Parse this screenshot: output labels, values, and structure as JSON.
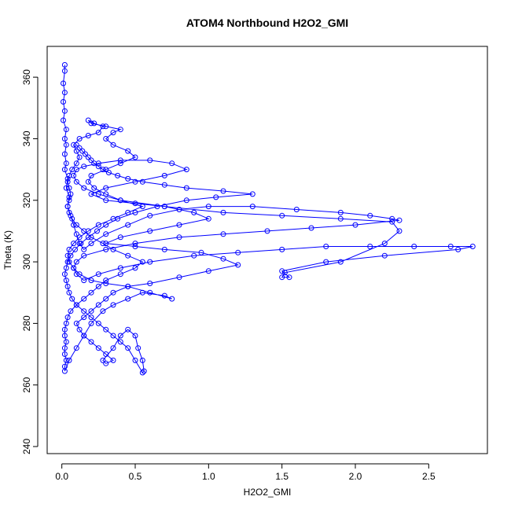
{
  "chart_data": {
    "type": "line",
    "title": "ATOM4 Northbound H2O2_GMI",
    "xlabel": "H2O2_GMI",
    "ylabel": "Theta (K)",
    "xlim": [
      -0.1,
      2.9
    ],
    "ylim": [
      237.7,
      370
    ],
    "x_ticks": [
      0.0,
      0.5,
      1.0,
      1.5,
      2.0,
      2.5
    ],
    "x_tick_labels": [
      "0.0",
      "0.5",
      "1.0",
      "1.5",
      "2.0",
      "2.5"
    ],
    "y_ticks": [
      240,
      260,
      280,
      300,
      320,
      340,
      360
    ],
    "y_tick_labels": [
      "240",
      "260",
      "280",
      "300",
      "320",
      "340",
      "360"
    ],
    "grid": false,
    "marker": "open-circle",
    "color": "#0000ff",
    "series": [
      {
        "values": [
          [
            0.02,
            364
          ],
          [
            0.02,
            362
          ],
          [
            0.01,
            358
          ],
          [
            0.02,
            355
          ],
          [
            0.01,
            352
          ],
          [
            0.02,
            349
          ],
          [
            0.01,
            346
          ],
          [
            0.03,
            343
          ],
          [
            0.02,
            340
          ],
          [
            0.03,
            338
          ],
          [
            0.02,
            335
          ],
          [
            0.03,
            332
          ],
          [
            0.02,
            330
          ],
          [
            0.04,
            327
          ],
          [
            0.03,
            324
          ],
          [
            0.05,
            321
          ],
          [
            0.04,
            318
          ],
          [
            0.06,
            315
          ],
          [
            0.08,
            312
          ],
          [
            0.1,
            309
          ],
          [
            0.12,
            306
          ],
          [
            0.15,
            304
          ],
          [
            0.2,
            306
          ],
          [
            0.3,
            309
          ],
          [
            0.45,
            312
          ],
          [
            0.6,
            315
          ],
          [
            0.8,
            317
          ],
          [
            1.0,
            318
          ],
          [
            1.3,
            318
          ],
          [
            1.6,
            317
          ],
          [
            1.9,
            316
          ],
          [
            2.1,
            315
          ],
          [
            2.25,
            314
          ],
          [
            2.3,
            313.5
          ],
          [
            2.0,
            312
          ],
          [
            1.7,
            311
          ],
          [
            1.4,
            310
          ],
          [
            1.1,
            309
          ],
          [
            0.8,
            308
          ],
          [
            0.5,
            306
          ],
          [
            0.3,
            304
          ],
          [
            0.15,
            302
          ],
          [
            0.1,
            300
          ],
          [
            0.08,
            298
          ],
          [
            0.1,
            296
          ],
          [
            0.15,
            294
          ],
          [
            0.25,
            296
          ],
          [
            0.4,
            298
          ],
          [
            0.6,
            300
          ],
          [
            0.9,
            302
          ],
          [
            1.2,
            303
          ],
          [
            1.5,
            304
          ],
          [
            1.8,
            305
          ],
          [
            2.1,
            305
          ],
          [
            2.4,
            305
          ],
          [
            2.65,
            305
          ],
          [
            2.8,
            305
          ],
          [
            2.7,
            304
          ],
          [
            2.2,
            302
          ],
          [
            1.8,
            300
          ],
          [
            1.5,
            297
          ],
          [
            1.55,
            295
          ],
          [
            1.5,
            295
          ],
          [
            1.52,
            296.5
          ],
          [
            1.9,
            300
          ],
          [
            2.2,
            306
          ],
          [
            2.3,
            310
          ],
          [
            2.25,
            313
          ],
          [
            1.9,
            314
          ],
          [
            1.5,
            315
          ],
          [
            1.1,
            316
          ],
          [
            0.7,
            318
          ],
          [
            0.4,
            320
          ],
          [
            0.25,
            322
          ],
          [
            0.15,
            324
          ],
          [
            0.1,
            326
          ],
          [
            0.08,
            328
          ],
          [
            0.1,
            330
          ],
          [
            0.15,
            331
          ],
          [
            0.25,
            332
          ],
          [
            0.4,
            333
          ],
          [
            0.6,
            333
          ],
          [
            0.75,
            332
          ],
          [
            0.85,
            330
          ],
          [
            0.7,
            328
          ],
          [
            0.5,
            326
          ],
          [
            0.3,
            324
          ],
          [
            0.2,
            322
          ],
          [
            0.3,
            320
          ],
          [
            0.5,
            319
          ],
          [
            0.7,
            318
          ],
          [
            0.9,
            316
          ],
          [
            1.0,
            314
          ],
          [
            0.8,
            312
          ],
          [
            0.6,
            310
          ],
          [
            0.4,
            308
          ],
          [
            0.3,
            306
          ],
          [
            0.5,
            305
          ],
          [
            0.7,
            304
          ],
          [
            0.95,
            303
          ],
          [
            1.1,
            301
          ],
          [
            1.2,
            299
          ],
          [
            1.0,
            297
          ],
          [
            0.8,
            295
          ],
          [
            0.6,
            293
          ],
          [
            0.45,
            292
          ],
          [
            0.3,
            293
          ],
          [
            0.2,
            294
          ],
          [
            0.12,
            296
          ],
          [
            0.08,
            298
          ],
          [
            0.05,
            300
          ],
          [
            0.04,
            302
          ],
          [
            0.05,
            304
          ],
          [
            0.08,
            306
          ],
          [
            0.12,
            308
          ],
          [
            0.18,
            310
          ],
          [
            0.25,
            312
          ],
          [
            0.35,
            314
          ],
          [
            0.45,
            316
          ],
          [
            0.55,
            318
          ],
          [
            0.4,
            320
          ],
          [
            0.3,
            322
          ],
          [
            0.22,
            324
          ],
          [
            0.18,
            326
          ],
          [
            0.2,
            328
          ],
          [
            0.3,
            330
          ],
          [
            0.4,
            332
          ],
          [
            0.5,
            334
          ],
          [
            0.45,
            336
          ],
          [
            0.35,
            338
          ],
          [
            0.3,
            340
          ],
          [
            0.35,
            342
          ],
          [
            0.4,
            343
          ],
          [
            0.3,
            344
          ],
          [
            0.2,
            345
          ],
          [
            0.18,
            346
          ],
          [
            0.22,
            345
          ],
          [
            0.28,
            344
          ],
          [
            0.25,
            342
          ],
          [
            0.18,
            341
          ],
          [
            0.12,
            340
          ],
          [
            0.08,
            338
          ],
          [
            0.1,
            336
          ],
          [
            0.12,
            334
          ],
          [
            0.1,
            332
          ],
          [
            0.07,
            330
          ],
          [
            0.05,
            328
          ],
          [
            0.04,
            326
          ],
          [
            0.05,
            324
          ],
          [
            0.06,
            322
          ],
          [
            0.05,
            320
          ],
          [
            0.04,
            318
          ],
          [
            0.05,
            316
          ],
          [
            0.07,
            314
          ],
          [
            0.1,
            312
          ],
          [
            0.15,
            310
          ],
          [
            0.2,
            308
          ],
          [
            0.28,
            306
          ],
          [
            0.35,
            304
          ],
          [
            0.45,
            302
          ],
          [
            0.55,
            300
          ],
          [
            0.5,
            298
          ],
          [
            0.4,
            296
          ],
          [
            0.3,
            294
          ],
          [
            0.25,
            292
          ],
          [
            0.2,
            290
          ],
          [
            0.15,
            288
          ],
          [
            0.1,
            286
          ],
          [
            0.06,
            284
          ],
          [
            0.04,
            282
          ],
          [
            0.03,
            280
          ],
          [
            0.02,
            278
          ],
          [
            0.02,
            276
          ],
          [
            0.03,
            274
          ],
          [
            0.02,
            272
          ],
          [
            0.02,
            270
          ],
          [
            0.03,
            268
          ],
          [
            0.02,
            266
          ],
          [
            0.02,
            264.5
          ],
          [
            0.05,
            268
          ],
          [
            0.1,
            272
          ],
          [
            0.15,
            276
          ],
          [
            0.2,
            280
          ],
          [
            0.28,
            284
          ],
          [
            0.35,
            286
          ],
          [
            0.45,
            288
          ],
          [
            0.55,
            290
          ],
          [
            0.7,
            289
          ],
          [
            0.75,
            288
          ],
          [
            0.6,
            290
          ],
          [
            0.45,
            292
          ],
          [
            0.35,
            290
          ],
          [
            0.3,
            288
          ],
          [
            0.25,
            286
          ],
          [
            0.2,
            284
          ],
          [
            0.15,
            282
          ],
          [
            0.1,
            280
          ],
          [
            0.12,
            278
          ],
          [
            0.15,
            276
          ],
          [
            0.2,
            274
          ],
          [
            0.25,
            272
          ],
          [
            0.3,
            270
          ],
          [
            0.35,
            268
          ],
          [
            0.3,
            267
          ],
          [
            0.28,
            268
          ],
          [
            0.35,
            272
          ],
          [
            0.4,
            276
          ],
          [
            0.45,
            278
          ],
          [
            0.5,
            276
          ],
          [
            0.52,
            272
          ],
          [
            0.55,
            268
          ],
          [
            0.56,
            264.5
          ],
          [
            0.55,
            264
          ],
          [
            0.5,
            268
          ],
          [
            0.45,
            272
          ],
          [
            0.4,
            274
          ],
          [
            0.35,
            276
          ],
          [
            0.3,
            278
          ],
          [
            0.25,
            280
          ],
          [
            0.2,
            282
          ],
          [
            0.15,
            284
          ],
          [
            0.1,
            286
          ],
          [
            0.07,
            288
          ],
          [
            0.05,
            290
          ],
          [
            0.04,
            292
          ],
          [
            0.03,
            294
          ],
          [
            0.02,
            296
          ],
          [
            0.03,
            298
          ],
          [
            0.04,
            300
          ],
          [
            0.06,
            302
          ],
          [
            0.09,
            304
          ],
          [
            0.13,
            306
          ],
          [
            0.18,
            308
          ],
          [
            0.24,
            310
          ],
          [
            0.3,
            312
          ],
          [
            0.38,
            314
          ],
          [
            0.5,
            316
          ],
          [
            0.65,
            318
          ],
          [
            0.85,
            320
          ],
          [
            1.05,
            321
          ],
          [
            1.3,
            322
          ],
          [
            1.1,
            323
          ],
          [
            0.85,
            324
          ],
          [
            0.7,
            325
          ],
          [
            0.55,
            326
          ],
          [
            0.45,
            327
          ],
          [
            0.38,
            328
          ],
          [
            0.32,
            329
          ],
          [
            0.28,
            330
          ],
          [
            0.25,
            331
          ],
          [
            0.22,
            332
          ],
          [
            0.2,
            333
          ],
          [
            0.18,
            334
          ],
          [
            0.16,
            335
          ],
          [
            0.14,
            336
          ],
          [
            0.12,
            337
          ],
          [
            0.1,
            338
          ]
        ]
      }
    ]
  }
}
